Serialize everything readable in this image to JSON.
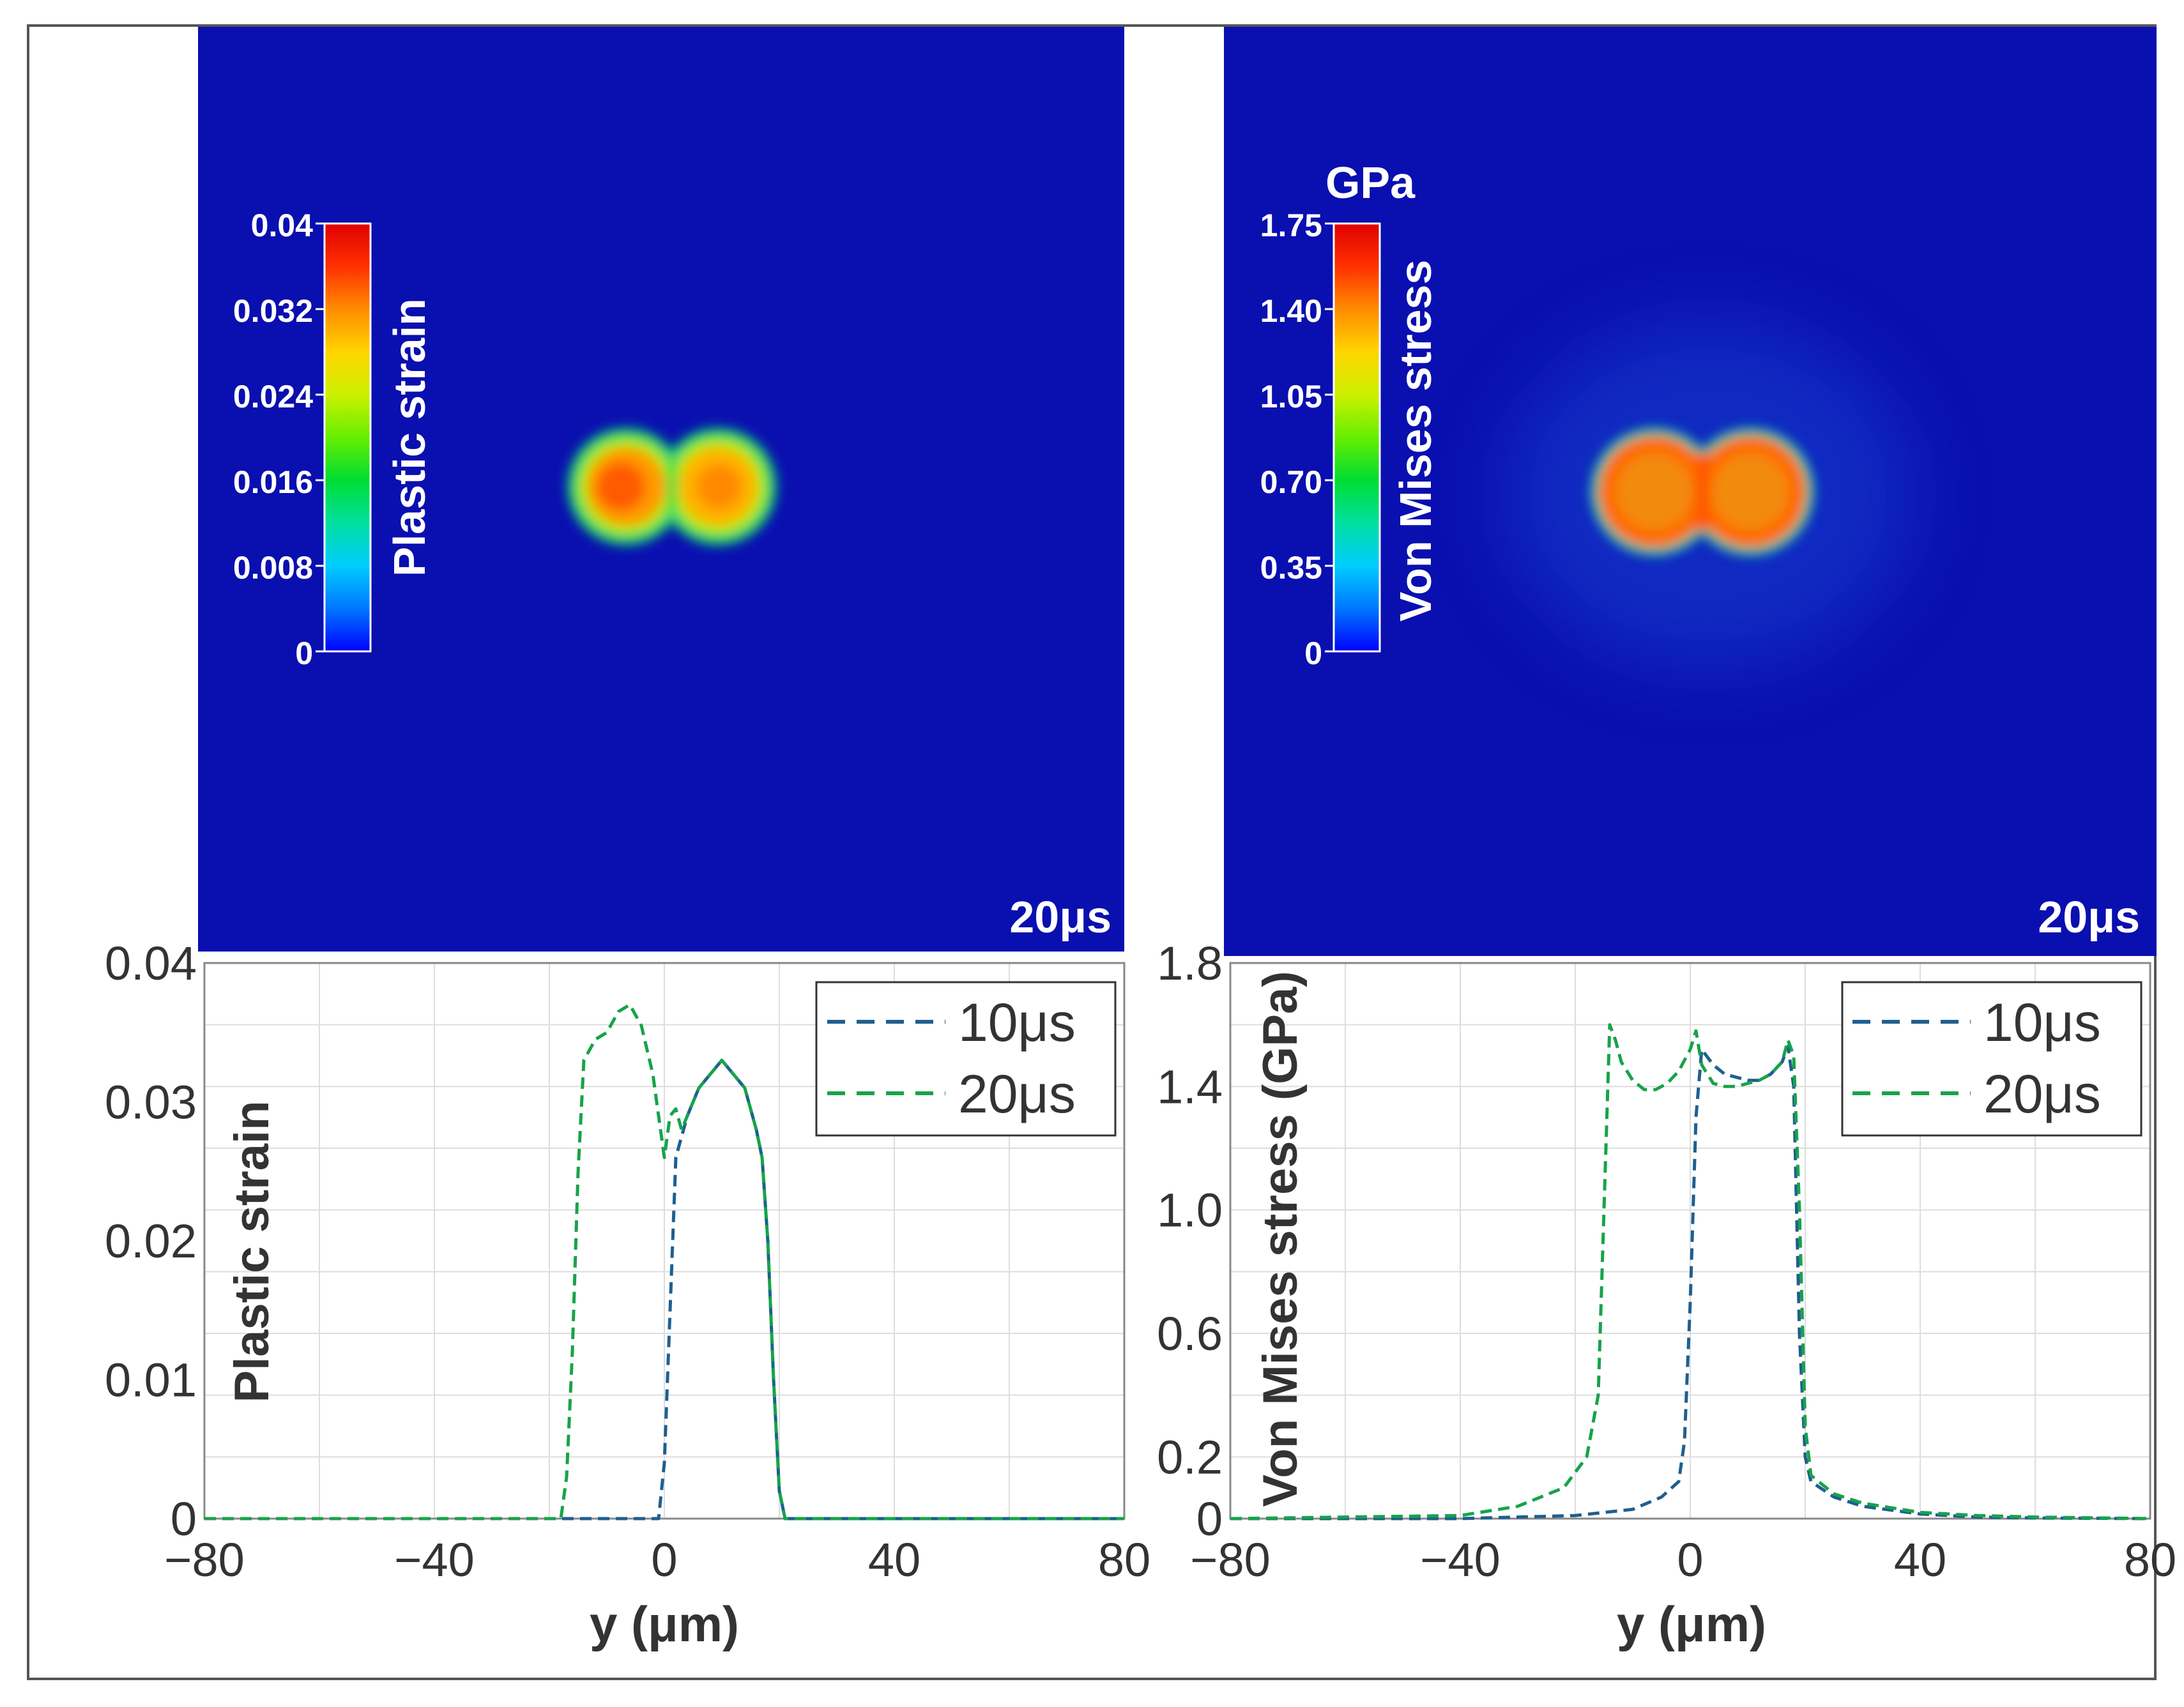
{
  "colors": {
    "field_background": "#0a0fb0",
    "series_10us": "#1f5f8f",
    "series_20us": "#17a34a",
    "grid": "#dddddd",
    "axis": "#888888"
  },
  "colormap_stops": [
    "#0000ff",
    "#0077ff",
    "#00ccff",
    "#00e0a0",
    "#00dd33",
    "#66ee00",
    "#ccf000",
    "#ffd400",
    "#ff8c00",
    "#ff3000",
    "#e00000"
  ],
  "panels": {
    "strain_field": {
      "timestamp": "20μs",
      "colorbar_title": "Plastic strain",
      "colorbar_unit": "",
      "colorbar_ticks": [
        "0.04",
        "0.032",
        "0.024",
        "0.016",
        "0.008",
        "0"
      ]
    },
    "stress_field": {
      "timestamp": "20μs",
      "colorbar_title": "Von Mises stress",
      "colorbar_unit": "GPa",
      "colorbar_ticks": [
        "1.75",
        "1.40",
        "1.05",
        "0.70",
        "0.35",
        "0"
      ]
    }
  },
  "chart_data": [
    {
      "type": "line",
      "ylabel": "Plastic strain",
      "xlabel": "y (μm)",
      "xlim": [
        -80,
        80
      ],
      "ylim": [
        0,
        0.04
      ],
      "x_ticks": [
        -80,
        -40,
        0,
        40,
        80
      ],
      "x_tick_labels": [
        "−80",
        "−40",
        "0",
        "40",
        "80"
      ],
      "y_ticks": [
        0,
        0.01,
        0.02,
        0.03,
        0.04
      ],
      "y_tick_labels": [
        "0",
        "0.01",
        "0.02",
        "0.03",
        "0.04"
      ],
      "grid": true,
      "legend": "top-right",
      "series": [
        {
          "name": "10μs",
          "x": [
            -80,
            -1,
            0,
            1,
            2,
            4,
            6,
            8,
            10,
            12,
            14,
            16,
            17,
            18,
            19,
            20,
            21,
            80
          ],
          "y": [
            0,
            0,
            0.004,
            0.015,
            0.026,
            0.029,
            0.031,
            0.032,
            0.033,
            0.032,
            0.031,
            0.028,
            0.026,
            0.02,
            0.01,
            0.002,
            0,
            0
          ]
        },
        {
          "name": "20μs",
          "x": [
            -80,
            -18,
            -17,
            -16,
            -15,
            -14,
            -12,
            -10,
            -8,
            -6,
            -4,
            -2,
            -1,
            0,
            1,
            2,
            3,
            4,
            6,
            8,
            10,
            12,
            14,
            16,
            17,
            18,
            19,
            20,
            21,
            80
          ],
          "y": [
            0,
            0,
            0.003,
            0.012,
            0.025,
            0.033,
            0.0345,
            0.035,
            0.0365,
            0.037,
            0.0355,
            0.032,
            0.029,
            0.026,
            0.029,
            0.0295,
            0.028,
            0.029,
            0.031,
            0.032,
            0.033,
            0.032,
            0.031,
            0.028,
            0.026,
            0.02,
            0.01,
            0.002,
            0,
            0
          ]
        }
      ]
    },
    {
      "type": "line",
      "ylabel": "Von Mises stress (GPa)",
      "xlabel": "y (μm)",
      "xlim": [
        -80,
        80
      ],
      "ylim": [
        0,
        1.8
      ],
      "x_ticks": [
        -80,
        -40,
        0,
        40,
        80
      ],
      "x_tick_labels": [
        "−80",
        "−40",
        "0",
        "40",
        "80"
      ],
      "y_ticks": [
        0,
        0.2,
        0.6,
        1.0,
        1.4,
        1.8
      ],
      "y_tick_labels": [
        "0",
        "0.2",
        "0.6",
        "1.0",
        "1.4",
        "1.8"
      ],
      "grid": true,
      "legend": "top-right",
      "series": [
        {
          "name": "10μs",
          "x": [
            -80,
            -40,
            -20,
            -10,
            -5,
            -2,
            -1,
            0,
            1,
            2,
            4,
            6,
            8,
            10,
            12,
            14,
            16,
            17,
            18,
            19,
            20,
            21,
            25,
            30,
            40,
            50,
            60,
            80
          ],
          "y": [
            0,
            0,
            0.01,
            0.03,
            0.07,
            0.12,
            0.25,
            0.7,
            1.3,
            1.52,
            1.47,
            1.44,
            1.43,
            1.42,
            1.42,
            1.44,
            1.48,
            1.53,
            1.4,
            0.6,
            0.2,
            0.12,
            0.07,
            0.04,
            0.015,
            0.005,
            0.002,
            0
          ]
        },
        {
          "name": "20μs",
          "x": [
            -80,
            -40,
            -30,
            -22,
            -18,
            -16,
            -15,
            -14,
            -13,
            -12,
            -10,
            -8,
            -6,
            -4,
            -2,
            0,
            1,
            2,
            4,
            6,
            8,
            10,
            12,
            14,
            16,
            17,
            18,
            19,
            20,
            21,
            25,
            30,
            40,
            50,
            60,
            80
          ],
          "y": [
            0,
            0.01,
            0.04,
            0.1,
            0.2,
            0.4,
            1.0,
            1.6,
            1.55,
            1.48,
            1.42,
            1.39,
            1.39,
            1.41,
            1.45,
            1.52,
            1.58,
            1.47,
            1.41,
            1.4,
            1.4,
            1.41,
            1.42,
            1.44,
            1.48,
            1.55,
            1.5,
            1.0,
            0.3,
            0.14,
            0.08,
            0.05,
            0.02,
            0.01,
            0.005,
            0
          ]
        }
      ]
    }
  ]
}
